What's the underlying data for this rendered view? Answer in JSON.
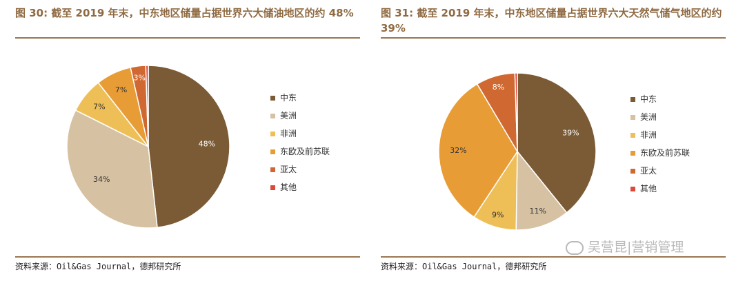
{
  "left": {
    "title": "图 30: 截至 2019 年末，中东地区储量占据世界六大储油地区的约 48%",
    "source": "资料来源：Oil&Gas Journal，德邦研究所"
  },
  "right": {
    "title": "图 31: 截至 2019 年末，中东地区储量占据世界六大天然气储气地区的约 39%",
    "source": "资料来源：Oil&Gas Journal，德邦研究所"
  },
  "watermark": {
    "text": "吴营昆|营销管理",
    "icon": "wechat-icon"
  },
  "chart_data": [
    {
      "type": "pie",
      "title": "图 30: 截至 2019 年末，中东地区储量占据世界六大储油地区的约 48%",
      "categories": [
        "中东",
        "美洲",
        "非洲",
        "东欧及前苏联",
        "亚太",
        "其他"
      ],
      "values": [
        48,
        34,
        7,
        7,
        3,
        0.5
      ],
      "labels": [
        "48%",
        "34%",
        "7%",
        "7%",
        "3%",
        ""
      ],
      "colors": [
        "#7b5b35",
        "#d6c1a3",
        "#efbf57",
        "#e89c36",
        "#cf6931",
        "#db4b3b"
      ],
      "legend_position": "right"
    },
    {
      "type": "pie",
      "title": "图 31: 截至 2019 年末，中东地区储量占据世界六大天然气储气地区的约 39%",
      "categories": [
        "中东",
        "美洲",
        "非洲",
        "东欧及前苏联",
        "亚太",
        "其他"
      ],
      "values": [
        39,
        11,
        9,
        32,
        8,
        0.5
      ],
      "labels": [
        "39%",
        "11%",
        "9%",
        "32%",
        "8%",
        ""
      ],
      "colors": [
        "#7b5b35",
        "#d6c1a3",
        "#efbf57",
        "#e89c36",
        "#cf6931",
        "#db4b3b"
      ],
      "legend_position": "right"
    }
  ]
}
